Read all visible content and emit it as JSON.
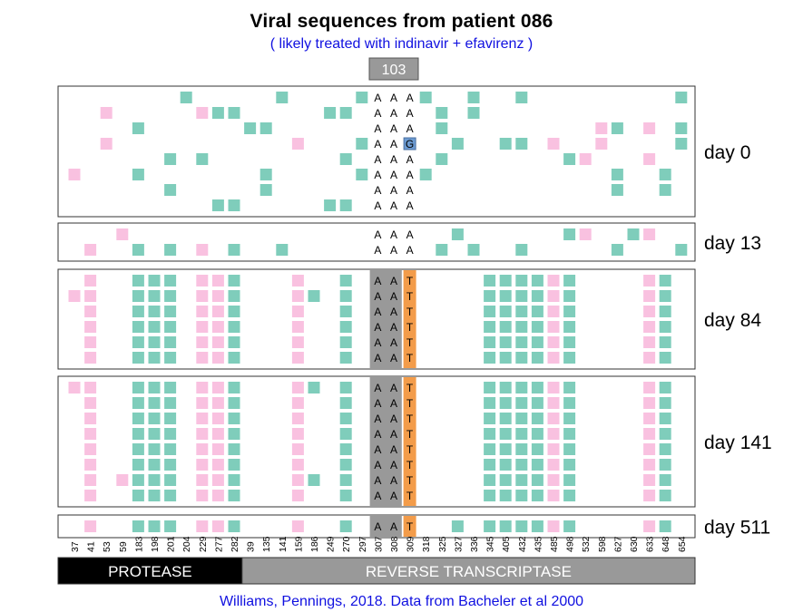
{
  "title": "Viral sequences from patient 086",
  "subtitle": "( likely treated with indinavir + efavirenz )",
  "citation": "Williams, Pennings, 2018. Data from Bacheler et al 2000",
  "chart_data": {
    "type": "heatmap",
    "positions": [
      37,
      41,
      53,
      59,
      183,
      198,
      201,
      204,
      229,
      277,
      282,
      39,
      135,
      141,
      159,
      186,
      249,
      270,
      297,
      307,
      308,
      309,
      318,
      325,
      327,
      336,
      345,
      405,
      432,
      435,
      485,
      498,
      532,
      598,
      627,
      630,
      633,
      648,
      654
    ],
    "regions": [
      {
        "label": "PROTEASE",
        "from": 37,
        "to": 282
      },
      {
        "label": "REVERSE TRANSCRIPTASE",
        "from": 39,
        "to": 654
      }
    ],
    "highlight_label": "103",
    "highlight_positions": [
      307,
      308,
      309
    ],
    "legend_colors": {
      "green": "#7fcdbb",
      "pink": "#f9c1e0",
      "blue": "#6c9bd2",
      "orange": "#f39c4a",
      "gray": "#999999"
    },
    "panels": [
      {
        "label": "day 0",
        "rows": [
          {
            "green": [
              204,
              141,
              297,
              318,
              336,
              432,
              654
            ],
            "pink": [],
            "nt": [
              "A",
              "A",
              "A"
            ]
          },
          {
            "green": [
              277,
              282,
              249,
              270,
              325,
              336
            ],
            "pink": [
              53,
              229
            ],
            "nt": [
              "A",
              "A",
              "A"
            ]
          },
          {
            "green": [
              183,
              39,
              135,
              325,
              627,
              654
            ],
            "pink": [
              598,
              633
            ],
            "nt": [
              "A",
              "A",
              "A"
            ]
          },
          {
            "green": [
              297,
              327,
              405,
              432,
              654
            ],
            "pink": [
              53,
              159,
              485,
              598
            ],
            "nt": [
              "A",
              "A",
              "G"
            ]
          },
          {
            "green": [
              201,
              229,
              270,
              325,
              498
            ],
            "pink": [
              532,
              633
            ],
            "nt": [
              "A",
              "A",
              "A"
            ]
          },
          {
            "green": [
              183,
              135,
              297,
              318,
              627,
              648
            ],
            "pink": [
              37
            ],
            "nt": [
              "A",
              "A",
              "A"
            ]
          },
          {
            "green": [
              201,
              135,
              627,
              648
            ],
            "pink": [],
            "nt": [
              "A",
              "A",
              "A"
            ]
          },
          {
            "green": [
              277,
              282,
              249,
              270
            ],
            "pink": [],
            "nt": [
              "A",
              "A",
              "A"
            ]
          }
        ]
      },
      {
        "label": "day 13",
        "rows": [
          {
            "green": [
              327,
              498,
              630
            ],
            "pink": [
              59,
              532,
              633
            ],
            "nt": [
              "A",
              "A",
              "A"
            ]
          },
          {
            "green": [
              183,
              201,
              282,
              141,
              325,
              336,
              432,
              627,
              654
            ],
            "pink": [
              41,
              229
            ],
            "nt": [
              "A",
              "A",
              "A"
            ]
          }
        ]
      },
      {
        "label": "day 84",
        "rows": [
          {
            "green": [
              183,
              198,
              201,
              282,
              270,
              345,
              405,
              432,
              435,
              498,
              648
            ],
            "pink": [
              41,
              229,
              277,
              159,
              485,
              633
            ],
            "nt": [
              "A",
              "A",
              "T"
            ]
          },
          {
            "green": [
              183,
              198,
              201,
              282,
              186,
              270,
              345,
              405,
              432,
              435,
              498,
              648
            ],
            "pink": [
              37,
              41,
              229,
              277,
              159,
              485,
              633
            ],
            "nt": [
              "A",
              "A",
              "T"
            ]
          },
          {
            "green": [
              183,
              198,
              201,
              282,
              270,
              345,
              405,
              432,
              435,
              498,
              648
            ],
            "pink": [
              41,
              229,
              277,
              159,
              485,
              633
            ],
            "nt": [
              "A",
              "A",
              "T"
            ]
          },
          {
            "green": [
              183,
              198,
              201,
              282,
              270,
              345,
              405,
              432,
              435,
              498,
              648
            ],
            "pink": [
              41,
              229,
              277,
              159,
              485,
              633
            ],
            "nt": [
              "A",
              "A",
              "T"
            ]
          },
          {
            "green": [
              183,
              198,
              201,
              282,
              270,
              345,
              405,
              432,
              435,
              498,
              648
            ],
            "pink": [
              41,
              229,
              277,
              159,
              485,
              633
            ],
            "nt": [
              "A",
              "A",
              "T"
            ]
          },
          {
            "green": [
              183,
              198,
              201,
              282,
              270,
              345,
              405,
              432,
              435,
              498,
              648
            ],
            "pink": [
              41,
              229,
              277,
              159,
              485,
              633
            ],
            "nt": [
              "A",
              "A",
              "T"
            ]
          }
        ]
      },
      {
        "label": "day 141",
        "rows": [
          {
            "green": [
              183,
              198,
              201,
              282,
              186,
              270,
              345,
              405,
              432,
              435,
              498,
              648
            ],
            "pink": [
              37,
              41,
              229,
              277,
              159,
              485,
              633
            ],
            "nt": [
              "A",
              "A",
              "T"
            ]
          },
          {
            "green": [
              183,
              198,
              201,
              282,
              270,
              345,
              405,
              432,
              435,
              498,
              648
            ],
            "pink": [
              41,
              229,
              277,
              159,
              485,
              633
            ],
            "nt": [
              "A",
              "A",
              "T"
            ]
          },
          {
            "green": [
              183,
              198,
              201,
              282,
              270,
              345,
              405,
              432,
              435,
              498,
              648
            ],
            "pink": [
              41,
              229,
              277,
              159,
              485,
              633
            ],
            "nt": [
              "A",
              "A",
              "T"
            ]
          },
          {
            "green": [
              183,
              198,
              201,
              282,
              270,
              345,
              405,
              432,
              435,
              498,
              648
            ],
            "pink": [
              41,
              229,
              277,
              159,
              485,
              633
            ],
            "nt": [
              "A",
              "A",
              "T"
            ]
          },
          {
            "green": [
              183,
              198,
              201,
              282,
              270,
              345,
              405,
              432,
              435,
              498,
              648
            ],
            "pink": [
              41,
              229,
              277,
              159,
              485,
              633
            ],
            "nt": [
              "A",
              "A",
              "T"
            ]
          },
          {
            "green": [
              183,
              198,
              201,
              282,
              270,
              345,
              405,
              432,
              435,
              498,
              648
            ],
            "pink": [
              41,
              229,
              277,
              159,
              485,
              633
            ],
            "nt": [
              "A",
              "A",
              "T"
            ]
          },
          {
            "green": [
              183,
              198,
              201,
              282,
              186,
              270,
              345,
              405,
              432,
              435,
              498,
              648
            ],
            "pink": [
              41,
              59,
              229,
              277,
              159,
              485,
              633
            ],
            "nt": [
              "A",
              "A",
              "T"
            ]
          },
          {
            "green": [
              183,
              198,
              201,
              282,
              270,
              345,
              405,
              432,
              435,
              498,
              648
            ],
            "pink": [
              41,
              229,
              277,
              159,
              485,
              633
            ],
            "nt": [
              "A",
              "A",
              "T"
            ]
          }
        ]
      },
      {
        "label": "day 511",
        "rows": [
          {
            "green": [
              183,
              198,
              201,
              282,
              270,
              327,
              345,
              405,
              432,
              435,
              498,
              648
            ],
            "pink": [
              41,
              229,
              277,
              159,
              485,
              633
            ],
            "nt": [
              "A",
              "A",
              "T"
            ]
          }
        ]
      }
    ]
  }
}
